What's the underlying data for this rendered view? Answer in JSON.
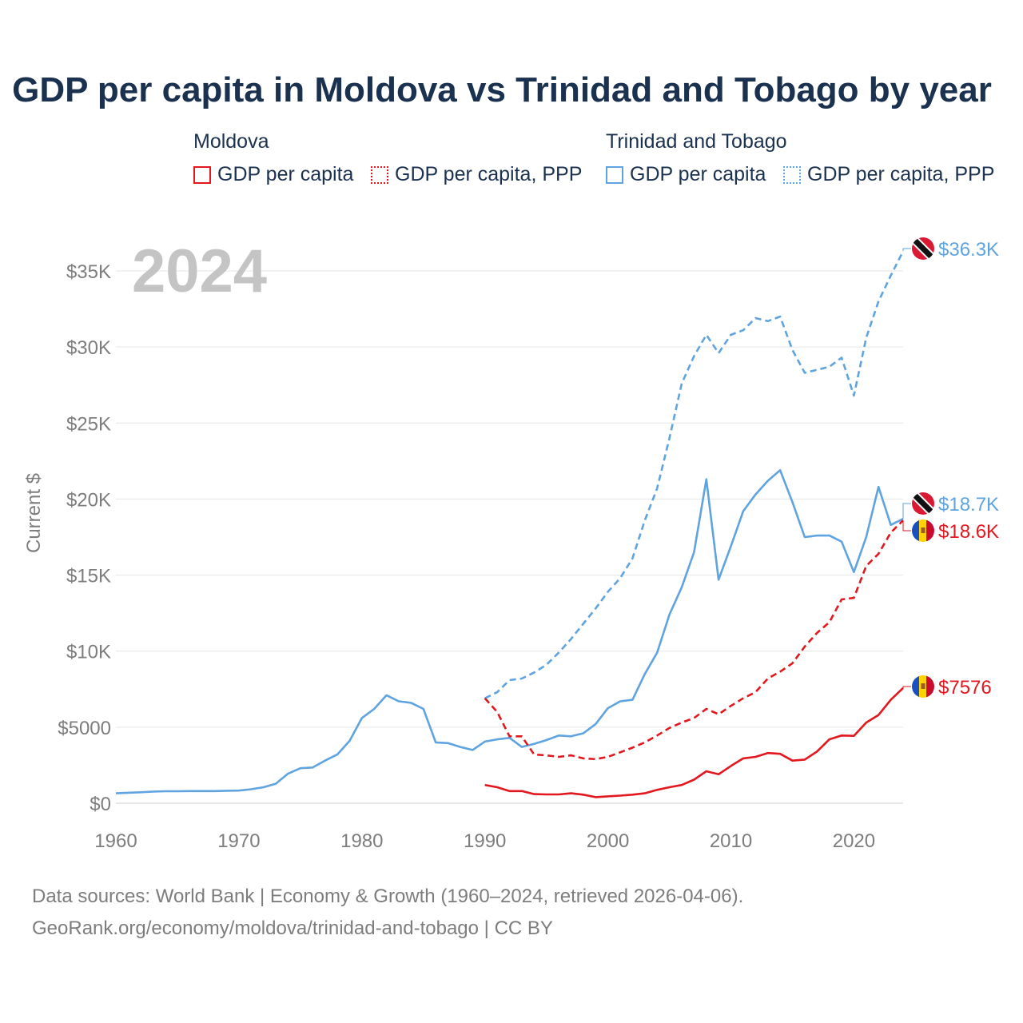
{
  "title": "GDP per capita in Moldova vs Trinidad and Tobago by year",
  "year_badge": "2024",
  "legend": {
    "groups": [
      {
        "country": "Moldova",
        "items": [
          "GDP per capita",
          "GDP per capita, PPP"
        ],
        "color": "#e3171e"
      },
      {
        "country": "Trinidad and Tobago",
        "items": [
          "GDP per capita",
          "GDP per capita, PPP"
        ],
        "color": "#5fa3e0"
      }
    ]
  },
  "sources": {
    "line1": "Data sources: World Bank | Economy & Growth (1960–2024, retrieved 2026-04-06).",
    "line2": "GeoRank.org/economy/moldova/trinidad-and-tobago | CC BY"
  },
  "chart_data": {
    "type": "line",
    "title": "GDP per capita in Moldova vs Trinidad and Tobago by year",
    "xlabel": "",
    "ylabel": "Current $",
    "xlim": [
      1960,
      2024
    ],
    "ylim": [
      0,
      37000
    ],
    "x_ticks": [
      1960,
      1970,
      1980,
      1990,
      2000,
      2010,
      2020
    ],
    "x_tick_labels": [
      "1960",
      "1970",
      "1980",
      "1990",
      "2000",
      "2010",
      "2020"
    ],
    "y_ticks": [
      0,
      5000,
      10000,
      15000,
      20000,
      25000,
      30000,
      35000
    ],
    "y_tick_labels": [
      "$0",
      "$5000",
      "$10K",
      "$15K",
      "$20K",
      "$25K",
      "$30K",
      "$35K"
    ],
    "grid": true,
    "series": [
      {
        "name": "Trinidad and Tobago GDP per capita, PPP",
        "country": "Trinidad and Tobago",
        "color": "#5fa3e0",
        "style": "dashed",
        "end_label": "$36.3K",
        "x": [
          1990,
          1991,
          1992,
          1993,
          1994,
          1995,
          1996,
          1997,
          1998,
          1999,
          2000,
          2001,
          2002,
          2003,
          2004,
          2005,
          2006,
          2007,
          2008,
          2009,
          2010,
          2011,
          2012,
          2013,
          2014,
          2015,
          2016,
          2017,
          2018,
          2019,
          2020,
          2021,
          2022,
          2023,
          2024
        ],
        "values": [
          6900,
          7300,
          8100,
          8200,
          8600,
          9100,
          9900,
          10800,
          11800,
          12800,
          13900,
          14800,
          16100,
          18600,
          20700,
          24000,
          27600,
          29400,
          30800,
          29600,
          30800,
          31100,
          31900,
          31700,
          32000,
          29800,
          28300,
          28500,
          28700,
          29300,
          26800,
          30600,
          33000,
          34700,
          36300
        ]
      },
      {
        "name": "Trinidad and Tobago GDP per capita",
        "country": "Trinidad and Tobago",
        "color": "#5fa3e0",
        "style": "solid",
        "end_label": "$18.7K",
        "x": [
          1960,
          1961,
          1962,
          1963,
          1964,
          1965,
          1966,
          1967,
          1968,
          1969,
          1970,
          1971,
          1972,
          1973,
          1974,
          1975,
          1976,
          1977,
          1978,
          1979,
          1980,
          1981,
          1982,
          1983,
          1984,
          1985,
          1986,
          1987,
          1988,
          1989,
          1990,
          1991,
          1992,
          1993,
          1994,
          1995,
          1996,
          1997,
          1998,
          1999,
          2000,
          2001,
          2002,
          2003,
          2004,
          2005,
          2006,
          2007,
          2008,
          2009,
          2010,
          2011,
          2012,
          2013,
          2014,
          2015,
          2016,
          2017,
          2018,
          2019,
          2020,
          2021,
          2022,
          2023,
          2024
        ],
        "values": [
          650,
          690,
          720,
          760,
          790,
          790,
          800,
          800,
          800,
          820,
          830,
          920,
          1050,
          1280,
          1950,
          2300,
          2350,
          2800,
          3200,
          4100,
          5600,
          6200,
          7100,
          6700,
          6600,
          6200,
          4000,
          3950,
          3700,
          3500,
          4050,
          4200,
          4300,
          3700,
          3900,
          4150,
          4450,
          4400,
          4600,
          5200,
          6250,
          6700,
          6800,
          8500,
          9900,
          12400,
          14200,
          16500,
          21300,
          14700,
          16900,
          19200,
          20300,
          21200,
          21900,
          19800,
          17500,
          17600,
          17600,
          17200,
          15200,
          17500,
          20800,
          18300,
          18700
        ]
      },
      {
        "name": "Moldova GDP per capita, PPP",
        "country": "Moldova",
        "color": "#e3171e",
        "style": "dashed",
        "end_label": "$18.6K",
        "x": [
          1990,
          1991,
          1992,
          1993,
          1994,
          1995,
          1996,
          1997,
          1998,
          1999,
          2000,
          2001,
          2002,
          2003,
          2004,
          2005,
          2006,
          2007,
          2008,
          2009,
          2010,
          2011,
          2012,
          2013,
          2014,
          2015,
          2016,
          2017,
          2018,
          2019,
          2020,
          2021,
          2022,
          2023,
          2024
        ],
        "values": [
          6900,
          6000,
          4400,
          4400,
          3200,
          3150,
          3050,
          3150,
          2950,
          2900,
          3050,
          3350,
          3650,
          4000,
          4450,
          4950,
          5300,
          5600,
          6200,
          5850,
          6400,
          6900,
          7300,
          8200,
          8650,
          9200,
          10300,
          11200,
          11900,
          13400,
          13500,
          15600,
          16400,
          17800,
          18600
        ]
      },
      {
        "name": "Moldova GDP per capita",
        "country": "Moldova",
        "color": "#e3171e",
        "style": "solid",
        "end_label": "$7576",
        "x": [
          1990,
          1991,
          1992,
          1993,
          1994,
          1995,
          1996,
          1997,
          1998,
          1999,
          2000,
          2001,
          2002,
          2003,
          2004,
          2005,
          2006,
          2007,
          2008,
          2009,
          2010,
          2011,
          2012,
          2013,
          2014,
          2015,
          2016,
          2017,
          2018,
          2019,
          2020,
          2021,
          2022,
          2023,
          2024
        ],
        "values": [
          1200,
          1050,
          800,
          800,
          600,
          580,
          580,
          650,
          560,
          400,
          450,
          500,
          560,
          650,
          880,
          1050,
          1200,
          1550,
          2100,
          1900,
          2450,
          2950,
          3050,
          3300,
          3250,
          2800,
          2870,
          3400,
          4200,
          4450,
          4430,
          5300,
          5800,
          6800,
          7576
        ]
      }
    ]
  }
}
